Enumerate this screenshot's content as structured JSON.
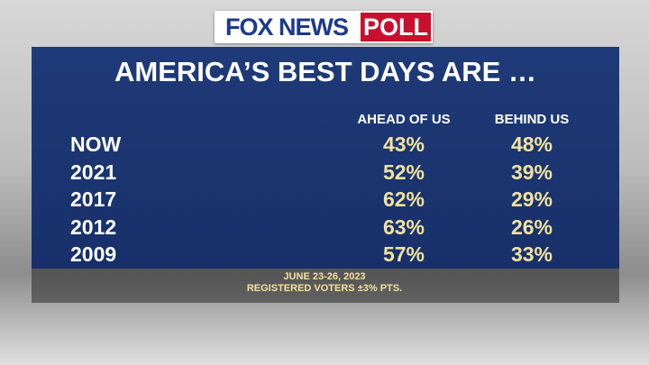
{
  "header": {
    "logo": "FOX NEWS",
    "logo_tag": "POLL"
  },
  "title": "AMERICA’S BEST DAYS ARE …",
  "table": {
    "columns": [
      "AHEAD OF US",
      "BEHIND US"
    ],
    "rows": [
      [
        "NOW",
        "43%",
        "48%"
      ],
      [
        "2021",
        "52%",
        "39%"
      ],
      [
        "2017",
        "62%",
        "29%"
      ],
      [
        "2012",
        "63%",
        "26%"
      ],
      [
        "2009",
        "57%",
        "33%"
      ]
    ]
  },
  "footer": [
    "JUNE 23-26, 2023",
    "REGISTERED VOTERS ±3% PTS."
  ]
}
